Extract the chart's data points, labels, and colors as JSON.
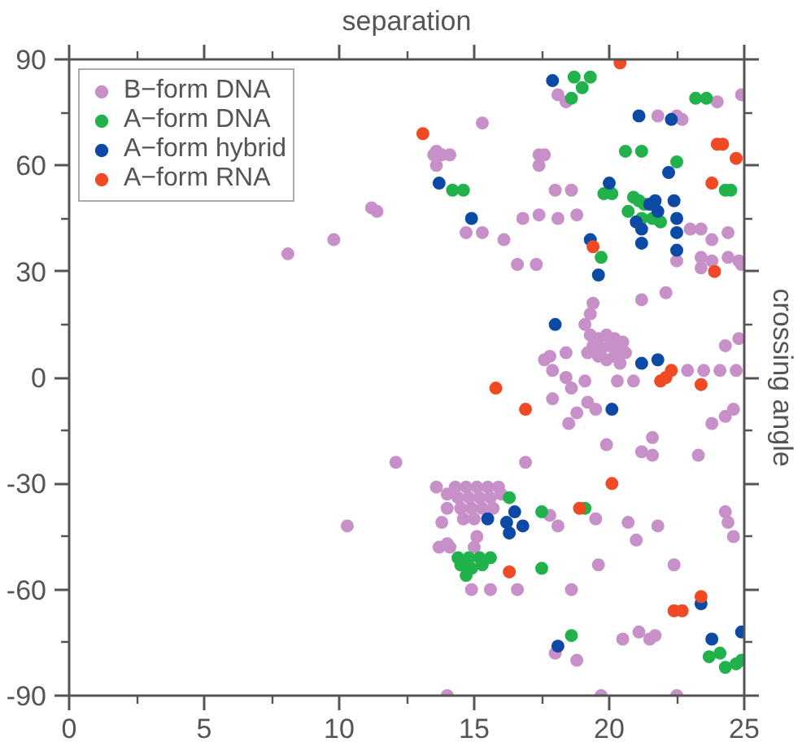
{
  "chart_data": {
    "type": "scatter",
    "xlabel": "separation",
    "ylabel": "crossing angle",
    "xlim": [
      0,
      25
    ],
    "ylim": [
      -90,
      90
    ],
    "xticks": [
      0,
      {
        "value": 2.5,
        "label": null
      },
      5,
      {
        "value": 7.5,
        "label": null
      },
      10,
      {
        "value": 12.5,
        "label": null
      },
      15,
      {
        "value": 17.5,
        "label": null
      },
      20,
      {
        "value": 22.5,
        "label": null
      },
      25
    ],
    "yticks": [
      -90,
      {
        "value": -75,
        "label": null
      },
      -60,
      {
        "value": -45,
        "label": null
      },
      -30,
      {
        "value": -15,
        "label": null
      },
      0,
      {
        "value": 15,
        "label": null
      },
      30,
      {
        "value": 45,
        "label": null
      },
      60,
      {
        "value": 75,
        "label": null
      },
      90
    ],
    "legend": "top left",
    "marker": "circle",
    "series": [
      {
        "name": "B−form DNA",
        "color": "#c890c8",
        "x": [
          13.6,
          13.8,
          13.6,
          13.5,
          14.1,
          11.4,
          11.2,
          9.8,
          8.1,
          18.1,
          18.4,
          24.0,
          24.9,
          21.8,
          22.5,
          22.7,
          15.3,
          17.4,
          17.6,
          17.4,
          18.0,
          18.6,
          14.7,
          15.3,
          16.1,
          16.8,
          17.4,
          18.1,
          18.8,
          16.6,
          17.3,
          23.0,
          23.4,
          23.8,
          24.4,
          23.4,
          23.8,
          24.4,
          24.8,
          24.9,
          23.4,
          22.5,
          21.2,
          22.1,
          19.4,
          19.3,
          19.1,
          19.3,
          19.6,
          19.9,
          20.2,
          20.5,
          19.4,
          19.7,
          20.0,
          20.3,
          20.6,
          19.6,
          19.9,
          20.2,
          20.4,
          19.2,
          24.3,
          24.8,
          17.8,
          17.6,
          17.9,
          18.4,
          22.9,
          23.5,
          24.1,
          24.7,
          17.9,
          18.6,
          19.1,
          18.4,
          19.2,
          18.8,
          18.5,
          19.5,
          20.3,
          20.9,
          23.8,
          24.3,
          24.6,
          19.9,
          21.2,
          21.6,
          21.6,
          23.3,
          16.9,
          12.1,
          13.6,
          14.0,
          14.0,
          13.8,
          10.3,
          13.7,
          14.1,
          14.3,
          14.7,
          15.1,
          15.5,
          15.9,
          14.4,
          14.8,
          15.2,
          15.6,
          16.0,
          14.5,
          14.9,
          15.3,
          15.7,
          14.6,
          15.0,
          14.0,
          15.1,
          15.0,
          18.1,
          17.8,
          19.5,
          20.7,
          21.8,
          21.0,
          24.3,
          24.6,
          24.4,
          19.6,
          22.4,
          14.9,
          15.6,
          16.6,
          18.6,
          18.0,
          18.8,
          20.5,
          21.1,
          21.5,
          21.7,
          14.0,
          19.7,
          22.5
        ],
        "values": [
          64,
          63,
          60,
          63,
          63,
          47,
          48,
          39,
          35,
          80,
          78,
          78,
          80,
          74,
          74,
          73,
          72,
          63,
          63,
          60,
          53,
          53,
          41,
          41,
          39,
          45,
          46,
          45,
          46,
          32,
          32,
          42,
          42,
          39,
          41,
          34,
          33,
          34,
          33,
          32,
          31,
          33,
          22,
          24,
          21,
          18,
          15,
          12,
          11,
          12,
          11,
          10,
          9,
          8,
          9,
          8,
          7,
          6,
          5,
          6,
          4,
          7,
          9,
          11,
          6,
          5,
          2,
          7,
          2,
          2,
          2,
          2,
          -6,
          -3,
          -1,
          0,
          -7,
          -10,
          -13,
          -9,
          -1,
          -1,
          -13,
          -11,
          -9,
          -19,
          -21,
          -22,
          -17,
          -22,
          -24,
          -24,
          -31,
          -33,
          -37,
          -41,
          -42,
          -48,
          -48,
          -31,
          -31,
          -31,
          -31,
          -31,
          -34,
          -34,
          -34,
          -34,
          -33,
          -37,
          -37,
          -37,
          -37,
          -40,
          -40,
          -47,
          -45,
          -48,
          -42,
          -39,
          -40,
          -41,
          -42,
          -46,
          -38,
          -45,
          -41,
          -53,
          -53,
          -60,
          -60,
          -60,
          -60,
          -78,
          -80,
          -74,
          -72,
          -74,
          -73,
          -90,
          -90,
          -90
        ]
      },
      {
        "name": "A−form DNA",
        "color": "#22b24c",
        "x": [
          18.7,
          19.0,
          19.3,
          18.6,
          23.2,
          23.6,
          20.6,
          21.2,
          22.5,
          24.3,
          24.5,
          14.2,
          14.6,
          19.8,
          20.1,
          20.9,
          21.1,
          20.7,
          21.3,
          21.6,
          21.9,
          21.2,
          19.7,
          16.3,
          17.5,
          19.1,
          14.4,
          14.8,
          15.2,
          15.6,
          14.5,
          14.9,
          15.3,
          14.7,
          17.5,
          18.6,
          23.7,
          24.1,
          24.3,
          24.7,
          24.9
        ],
        "values": [
          85,
          82,
          85,
          79,
          79,
          79,
          64,
          64,
          61,
          53,
          53,
          53,
          53,
          52,
          52,
          51,
          50,
          47,
          49,
          45,
          44,
          45,
          34,
          -34,
          -38,
          -37,
          -51,
          -51,
          -51,
          -51,
          -53,
          -54,
          -53,
          -56,
          -54,
          -73,
          -79,
          -78,
          -82,
          -81,
          -80
        ]
      },
      {
        "name": "A−form hybrid",
        "color": "#0d4aa6",
        "x": [
          13.7,
          17.9,
          21.1,
          22.3,
          22.2,
          20.0,
          21.5,
          21.7,
          21.0,
          21.2,
          21.8,
          22.4,
          22.5,
          21.2,
          22.5,
          22.5,
          14.9,
          19.3,
          19.6,
          18.0,
          21.2,
          21.8,
          20.1,
          15.5,
          16.2,
          16.5,
          16.8,
          16.3,
          23.4,
          18.1,
          23.8,
          24.9
        ],
        "values": [
          55,
          84,
          74,
          73,
          58,
          55,
          49,
          50,
          44,
          42,
          47,
          50,
          45,
          38,
          41,
          36,
          45,
          39,
          29,
          15,
          4,
          5,
          -9,
          -40,
          -41,
          -38,
          -42,
          -44,
          -64,
          -76,
          -74,
          -72
        ]
      },
      {
        "name": "A−form RNA",
        "color": "#f04a24",
        "x": [
          13.1,
          20.4,
          24.0,
          24.2,
          24.7,
          23.8,
          19.4,
          23.9,
          22.1,
          22.3,
          21.9,
          23.4,
          15.8,
          16.9,
          20.1,
          18.9,
          16.3,
          22.4,
          22.7,
          23.4
        ],
        "values": [
          69,
          89,
          66,
          66,
          62,
          55,
          37,
          30,
          0,
          2,
          -1,
          -2,
          -3,
          -9,
          -30,
          -37,
          -55,
          -66,
          -66,
          -62
        ]
      }
    ]
  }
}
